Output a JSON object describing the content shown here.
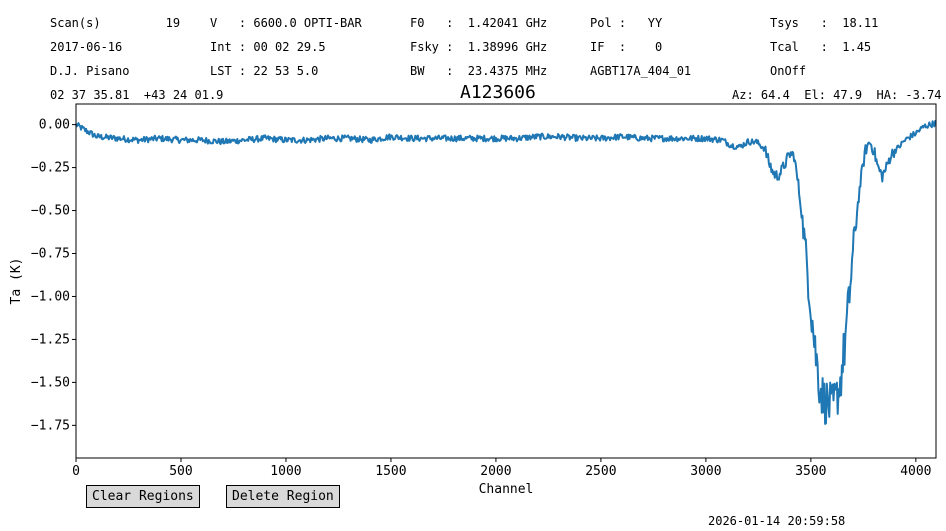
{
  "header": {
    "col1": [
      "Scan(s)         19",
      "2017-06-16",
      "D.J. Pisano",
      "02 37 35.81  +43 24 01.9"
    ],
    "col2": [
      "V   : 6600.0 OPTI-BAR",
      "Int : 00 02 29.5",
      "LST : 22 53 5.0"
    ],
    "col3": [
      "F0   :  1.42041 GHz",
      "Fsky :  1.38996 GHz",
      "BW   :  23.4375 MHz"
    ],
    "col4": [
      "Pol :   YY",
      "IF  :    0",
      "AGBT17A_404_01"
    ],
    "col5": [
      "Tsys   :  18.11",
      "Tcal   :  1.45",
      "OnOff"
    ],
    "azel": "Az: 64.4  El: 47.9  HA: -3.74"
  },
  "buttons": {
    "clear": "Clear Regions",
    "delete": "Delete Region"
  },
  "timestamp": "2026-01-14 20:59:58",
  "chart_data": {
    "type": "line",
    "title": "A123606",
    "xlabel": "Channel",
    "ylabel": "Ta (K)",
    "xlim": [
      0,
      4096
    ],
    "ylim": [
      -1.94,
      0.12
    ],
    "xticks": [
      0,
      500,
      1000,
      1500,
      2000,
      2500,
      3000,
      3500,
      4000
    ],
    "yticks": [
      0.0,
      -0.25,
      -0.5,
      -0.75,
      -1.0,
      -1.25,
      -1.5,
      -1.75
    ],
    "ytick_labels": [
      "0.00",
      "−0.25",
      "−0.50",
      "−0.75",
      "−1.00",
      "−1.25",
      "−1.50",
      "−1.75"
    ],
    "line_color": "#1f77b4",
    "grid": false,
    "series": [
      {
        "x": [
          0,
          40,
          100,
          200,
          300,
          400,
          500,
          600,
          700,
          800,
          900,
          1000,
          1100,
          1200,
          1300,
          1400,
          1500,
          1600,
          1700,
          1800,
          1900,
          2000,
          2100,
          2200,
          2300,
          2400,
          2500,
          2600,
          2700,
          2800,
          2900,
          3000,
          3080,
          3120,
          3160,
          3200,
          3240,
          3280,
          3300,
          3320,
          3340,
          3360,
          3400,
          3420,
          3440,
          3460,
          3480,
          3500,
          3520,
          3540,
          3560,
          3580,
          3600,
          3620,
          3640,
          3660,
          3680,
          3700,
          3720,
          3740,
          3760,
          3780,
          3800,
          3820,
          3840,
          3860,
          3880,
          3900,
          3920,
          3940,
          3960,
          4000,
          4040,
          4096
        ],
        "y": [
          0.0,
          -0.03,
          -0.07,
          -0.08,
          -0.09,
          -0.08,
          -0.09,
          -0.09,
          -0.1,
          -0.09,
          -0.08,
          -0.09,
          -0.09,
          -0.08,
          -0.08,
          -0.09,
          -0.07,
          -0.08,
          -0.08,
          -0.08,
          -0.08,
          -0.08,
          -0.08,
          -0.07,
          -0.07,
          -0.08,
          -0.08,
          -0.07,
          -0.08,
          -0.08,
          -0.08,
          -0.08,
          -0.09,
          -0.12,
          -0.13,
          -0.1,
          -0.1,
          -0.14,
          -0.22,
          -0.28,
          -0.3,
          -0.27,
          -0.17,
          -0.18,
          -0.35,
          -0.55,
          -0.8,
          -1.05,
          -1.3,
          -1.5,
          -1.6,
          -1.62,
          -1.65,
          -1.6,
          -1.5,
          -1.3,
          -1.05,
          -0.75,
          -0.5,
          -0.3,
          -0.15,
          -0.1,
          -0.15,
          -0.25,
          -0.3,
          -0.25,
          -0.18,
          -0.15,
          -0.13,
          -0.1,
          -0.08,
          -0.05,
          -0.01,
          0.01
        ]
      }
    ]
  }
}
